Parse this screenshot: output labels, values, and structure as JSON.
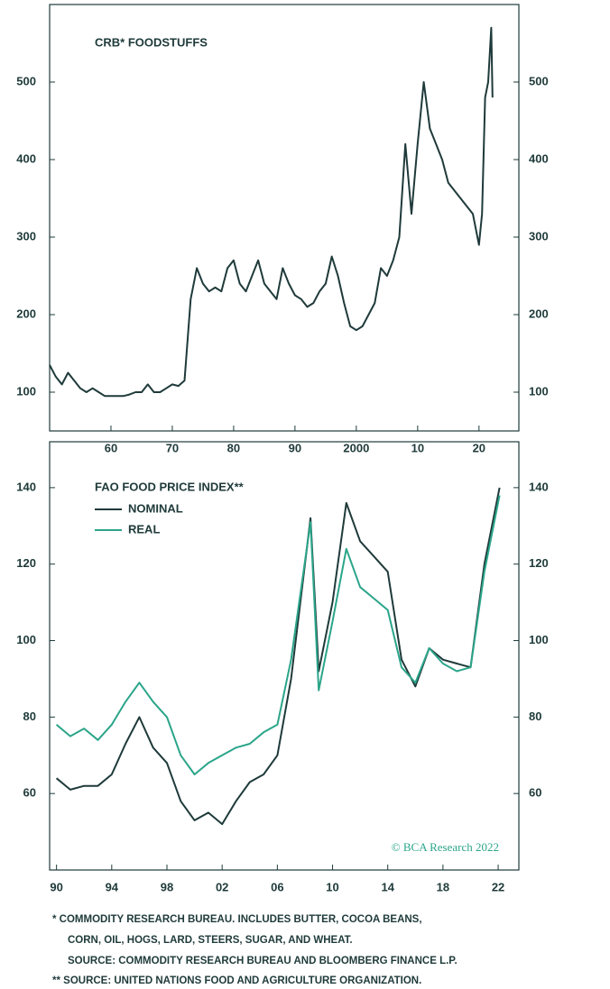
{
  "chart_data": [
    {
      "type": "line",
      "title": "CRB* FOODSTUFFS",
      "x": [
        1950,
        1951,
        1952,
        1953,
        1954,
        1955,
        1956,
        1957,
        1958,
        1959,
        1960,
        1961,
        1962,
        1963,
        1964,
        1965,
        1966,
        1967,
        1968,
        1969,
        1970,
        1971,
        1972,
        1973,
        1974,
        1975,
        1976,
        1977,
        1978,
        1979,
        1980,
        1981,
        1982,
        1983,
        1984,
        1985,
        1986,
        1987,
        1988,
        1989,
        1990,
        1991,
        1992,
        1993,
        1994,
        1995,
        1996,
        1997,
        1998,
        1999,
        2000,
        2001,
        2002,
        2003,
        2004,
        2005,
        2006,
        2007,
        2008,
        2009,
        2010,
        2011,
        2012,
        2013,
        2014,
        2015,
        2016,
        2017,
        2018,
        2019,
        2020,
        2020.5,
        2021,
        2021.5,
        2022,
        2022.2
      ],
      "values": [
        135,
        120,
        110,
        125,
        115,
        105,
        100,
        105,
        100,
        95,
        95,
        95,
        95,
        97,
        100,
        100,
        110,
        100,
        100,
        105,
        110,
        108,
        115,
        220,
        260,
        240,
        230,
        235,
        230,
        260,
        270,
        240,
        230,
        250,
        270,
        240,
        230,
        220,
        260,
        240,
        225,
        220,
        210,
        215,
        230,
        240,
        275,
        250,
        215,
        185,
        180,
        185,
        200,
        215,
        260,
        250,
        270,
        300,
        420,
        330,
        420,
        500,
        440,
        420,
        400,
        370,
        360,
        350,
        340,
        330,
        290,
        330,
        480,
        500,
        570,
        480
      ],
      "color": "#1f3a3a",
      "xlim": [
        1950,
        2026.5
      ],
      "xticks": [
        {
          "value": 1960,
          "label": "60"
        },
        {
          "value": 1970,
          "label": "70"
        },
        {
          "value": 1980,
          "label": "80"
        },
        {
          "value": 1990,
          "label": "90"
        },
        2000,
        {
          "value": 2010,
          "label": "10"
        },
        {
          "value": 2020,
          "label": "20"
        }
      ],
      "ylim": [
        50,
        600
      ],
      "yticks": [
        100,
        200,
        300,
        400,
        500
      ]
    },
    {
      "type": "line",
      "title": "FAO FOOD PRICE INDEX**",
      "x": [
        1990,
        1991,
        1992,
        1993,
        1994,
        1995,
        1996,
        1997,
        1998,
        1999,
        2000,
        2001,
        2002,
        2003,
        2004,
        2005,
        2006,
        2007,
        2008.4,
        2009,
        2010,
        2011,
        2012,
        2013,
        2014,
        2015,
        2016,
        2017,
        2018,
        2019,
        2020,
        2021,
        2022.1
      ],
      "series": [
        {
          "name": "NOMINAL",
          "color": "#1f3a3a",
          "values": [
            64,
            61,
            62,
            62,
            65,
            73,
            80,
            72,
            68,
            58,
            53,
            55,
            52,
            58,
            63,
            65,
            70,
            90,
            132,
            92,
            110,
            136,
            126,
            122,
            118,
            95,
            88,
            98,
            95,
            94,
            93,
            120,
            140
          ]
        },
        {
          "name": "REAL",
          "color": "#2ba58a",
          "values": [
            78,
            75,
            77,
            74,
            78,
            84,
            89,
            84,
            80,
            70,
            65,
            68,
            70,
            72,
            73,
            76,
            78,
            95,
            131,
            87,
            105,
            124,
            114,
            111,
            108,
            93,
            89,
            98,
            94,
            92,
            93,
            118,
            138
          ]
        }
      ],
      "annotation": "© BCA Research 2022",
      "xlim": [
        1989.5,
        2023.5
      ],
      "xticks": [
        {
          "value": 1990,
          "label": "90"
        },
        {
          "value": 1994,
          "label": "94"
        },
        {
          "value": 1998,
          "label": "98"
        },
        {
          "value": 2002,
          "label": "02"
        },
        {
          "value": 2006,
          "label": "06"
        },
        {
          "value": 2010,
          "label": "10"
        },
        {
          "value": 2014,
          "label": "14"
        },
        {
          "value": 2018,
          "label": "18"
        },
        {
          "value": 2022,
          "label": "22"
        }
      ],
      "ylim": [
        40,
        152
      ],
      "yticks": [
        60,
        80,
        100,
        120,
        140
      ]
    }
  ],
  "notes": [
    "* COMMODITY RESEARCH BUREAU. INCLUDES BUTTER, COCOA BEANS,",
    "CORN, OIL, HOGS, LARD, STEERS, SUGAR, AND WHEAT.",
    "SOURCE: COMMODITY RESEARCH BUREAU AND BLOOMBERG FINANCE L.P.",
    "** SOURCE: UNITED NATIONS FOOD AND AGRICULTURE ORGANIZATION."
  ]
}
